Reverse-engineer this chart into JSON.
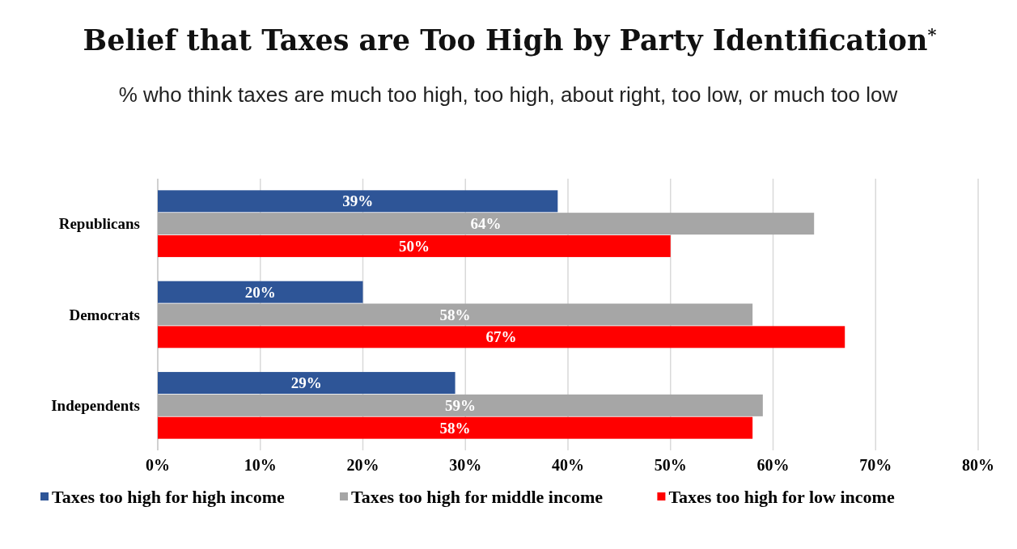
{
  "chart_data": {
    "type": "bar",
    "orientation": "horizontal",
    "title": "Belief that Taxes are Too High by Party Identification$^{*}$",
    "subtitle": "% who think taxes are much too high, too high, about right, too low, or much too low",
    "categories": [
      "Republicans",
      "Democrats",
      "Independents"
    ],
    "series": [
      {
        "name": "Taxes too high for high income",
        "color": "#2e5597",
        "values": [
          39,
          20,
          29
        ],
        "value_labels": [
          "39%",
          "20%",
          "29%"
        ]
      },
      {
        "name": "Taxes too high for middle income",
        "color": "#a6a6a6",
        "values": [
          64,
          58,
          59
        ],
        "value_labels": [
          "64%",
          "58%",
          "59%"
        ]
      },
      {
        "name": "Taxes too high for low income",
        "color": "#ff0000",
        "values": [
          50,
          67,
          58
        ],
        "value_labels": [
          "50%",
          "67%",
          "58%"
        ]
      }
    ],
    "xlim": [
      0,
      80
    ],
    "xticks": [
      {
        "value": 0,
        "label": "0%"
      },
      {
        "value": 10,
        "label": "10%"
      },
      {
        "value": 20,
        "label": "20%"
      },
      {
        "value": 30,
        "label": "30%"
      },
      {
        "value": 40,
        "label": "40%"
      },
      {
        "value": 50,
        "label": "50%"
      },
      {
        "value": 60,
        "label": "60%"
      },
      {
        "value": 70,
        "label": "70%"
      },
      {
        "value": 80,
        "label": "80%"
      }
    ],
    "grid": "x",
    "legend": "bottom"
  }
}
